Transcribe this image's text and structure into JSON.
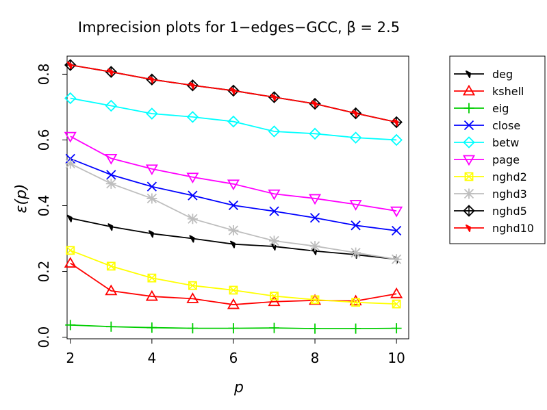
{
  "chart_data": {
    "type": "line",
    "title": "Imprecision plots for 1−edges−GCC, β = 2.5",
    "xlabel": "p",
    "ylabel": "ε(p)",
    "x": [
      2,
      3,
      4,
      5,
      6,
      7,
      8,
      9,
      10
    ],
    "xlim": [
      1.92,
      10.3
    ],
    "ylim": [
      -0.005,
      0.855
    ],
    "xticks": [
      "2",
      "4",
      "6",
      "8",
      "10"
    ],
    "yticks": [
      "0.0",
      "0.2",
      "0.4",
      "0.6",
      "0.8"
    ],
    "grid": false,
    "legend_position": "right",
    "series": [
      {
        "name": "deg",
        "color": "#000000",
        "marker": "arrow",
        "values": [
          0.362,
          0.336,
          0.315,
          0.3,
          0.283,
          0.276,
          0.262,
          0.251,
          0.237
        ]
      },
      {
        "name": "kshell",
        "color": "#ff0000",
        "marker": "triangle-up",
        "values": [
          0.225,
          0.141,
          0.124,
          0.117,
          0.099,
          0.108,
          0.112,
          0.11,
          0.132
        ]
      },
      {
        "name": "eig",
        "color": "#00cd00",
        "marker": "plus",
        "values": [
          0.037,
          0.032,
          0.029,
          0.027,
          0.027,
          0.028,
          0.026,
          0.026,
          0.027
        ]
      },
      {
        "name": "close",
        "color": "#0000ff",
        "marker": "x",
        "values": [
          0.543,
          0.494,
          0.458,
          0.431,
          0.401,
          0.383,
          0.363,
          0.34,
          0.324
        ]
      },
      {
        "name": "betw",
        "color": "#00ffff",
        "marker": "diamond",
        "values": [
          0.727,
          0.704,
          0.68,
          0.67,
          0.656,
          0.626,
          0.619,
          0.607,
          0.6
        ]
      },
      {
        "name": "page",
        "color": "#ff00ff",
        "marker": "triangle-down",
        "values": [
          0.611,
          0.544,
          0.512,
          0.487,
          0.466,
          0.436,
          0.422,
          0.404,
          0.384
        ]
      },
      {
        "name": "nghd2",
        "color": "#ffff00",
        "marker": "square-x",
        "values": [
          0.264,
          0.216,
          0.18,
          0.157,
          0.143,
          0.125,
          0.114,
          0.106,
          0.101
        ]
      },
      {
        "name": "nghd3",
        "color": "#bebebe",
        "marker": "star",
        "values": [
          0.528,
          0.467,
          0.422,
          0.36,
          0.325,
          0.293,
          0.277,
          0.257,
          0.237
        ]
      },
      {
        "name": "nghd5",
        "color": "#000000",
        "marker": "diamond-plus",
        "values": [
          0.828,
          0.807,
          0.784,
          0.766,
          0.75,
          0.73,
          0.71,
          0.681,
          0.654
        ]
      },
      {
        "name": "nghd10",
        "color": "#ff0000",
        "marker": "arrow",
        "values": [
          0.828,
          0.807,
          0.784,
          0.766,
          0.75,
          0.73,
          0.71,
          0.681,
          0.654
        ]
      }
    ]
  }
}
